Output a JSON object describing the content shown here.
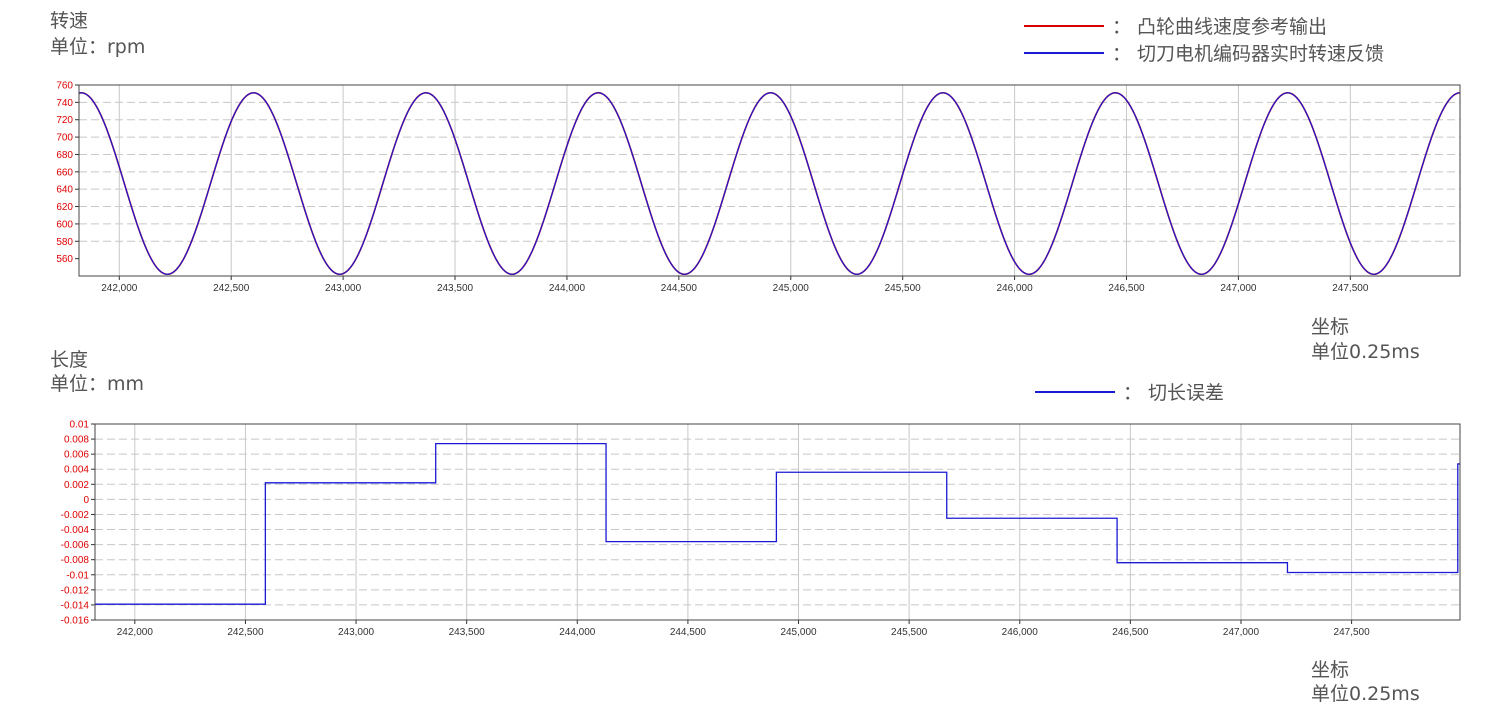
{
  "charts": {
    "top": {
      "ylabel": "转速",
      "yunit": "单位：rpm",
      "xlabel": "坐标",
      "xunit": "单位0.25ms",
      "legend": [
        {
          "label": "：  凸轮曲线速度参考输出",
          "color": "#d40000"
        },
        {
          "label": "：  切刀电机编码器实时转速反馈",
          "color": "#1a1ad4"
        }
      ]
    },
    "bottom": {
      "ylabel": "长度",
      "yunit": "单位：mm",
      "xlabel": "坐标",
      "xunit": "单位0.25ms",
      "legend": [
        {
          "label": "：  切长误差",
          "color": "#1a1ad4"
        }
      ]
    }
  },
  "chart_data": [
    {
      "type": "line",
      "ylim": [
        540,
        760
      ],
      "yticks": [
        560,
        580,
        600,
        620,
        640,
        660,
        680,
        700,
        720,
        740,
        760
      ],
      "yticklabels": [
        "560",
        "580",
        "600",
        "620",
        "640",
        "660",
        "680",
        "700",
        "720",
        "740",
        "760"
      ],
      "xlim": [
        241820,
        247990
      ],
      "xticks": [
        242000,
        242500,
        243000,
        243500,
        244000,
        244500,
        245000,
        245500,
        246000,
        246500,
        247000,
        247500
      ],
      "xticklabels": [
        "242,000",
        "242,500",
        "243,000",
        "243,500",
        "244,000",
        "244,500",
        "245,000",
        "245,500",
        "246,000",
        "246,500",
        "247,000",
        "247,500"
      ],
      "grid": true,
      "legend_position": "top-right",
      "series": [
        {
          "name": "凸轮曲线速度参考输出",
          "color": "#d40000",
          "kind": "sine",
          "min": 542,
          "max": 751,
          "period": 770,
          "first_peak": 241830
        },
        {
          "name": "切刀电机编码器实时转速反馈",
          "color": "#1a1ad4",
          "kind": "sine",
          "min": 542,
          "max": 751,
          "period": 770,
          "first_peak": 241830
        }
      ]
    },
    {
      "type": "line",
      "ylim": [
        -0.016,
        0.01
      ],
      "yticks": [
        -0.016,
        -0.014,
        -0.012,
        -0.01,
        -0.008,
        -0.006,
        -0.004,
        -0.002,
        0,
        0.002,
        0.004,
        0.006,
        0.008,
        0.01
      ],
      "yticklabels": [
        "-0.016",
        "-0.014",
        "-0.012",
        "-0.01",
        "-0.008",
        "-0.006",
        "-0.004",
        "-0.002",
        "0",
        "0.002",
        "0.004",
        "0.006",
        "0.008",
        "0.01"
      ],
      "xlim": [
        241820,
        247990
      ],
      "xticks": [
        242000,
        242500,
        243000,
        243500,
        244000,
        244500,
        245000,
        245500,
        246000,
        246500,
        247000,
        247500
      ],
      "xticklabels": [
        "242,000",
        "242,500",
        "243,000",
        "243,500",
        "244,000",
        "244,500",
        "245,000",
        "245,500",
        "246,000",
        "246,500",
        "247,000",
        "247,500"
      ],
      "grid": true,
      "legend_position": "top-right",
      "series": [
        {
          "name": "切长误差",
          "color": "#1a1ad4",
          "kind": "step",
          "points": [
            [
              241820,
              -0.0139
            ],
            [
              242590,
              0.0022
            ],
            [
              243360,
              0.0074
            ],
            [
              244130,
              -0.0056
            ],
            [
              244900,
              0.0036
            ],
            [
              245670,
              -0.0025
            ],
            [
              246440,
              -0.0084
            ],
            [
              247210,
              -0.0097
            ],
            [
              247980,
              0.0047
            ]
          ]
        }
      ]
    }
  ]
}
